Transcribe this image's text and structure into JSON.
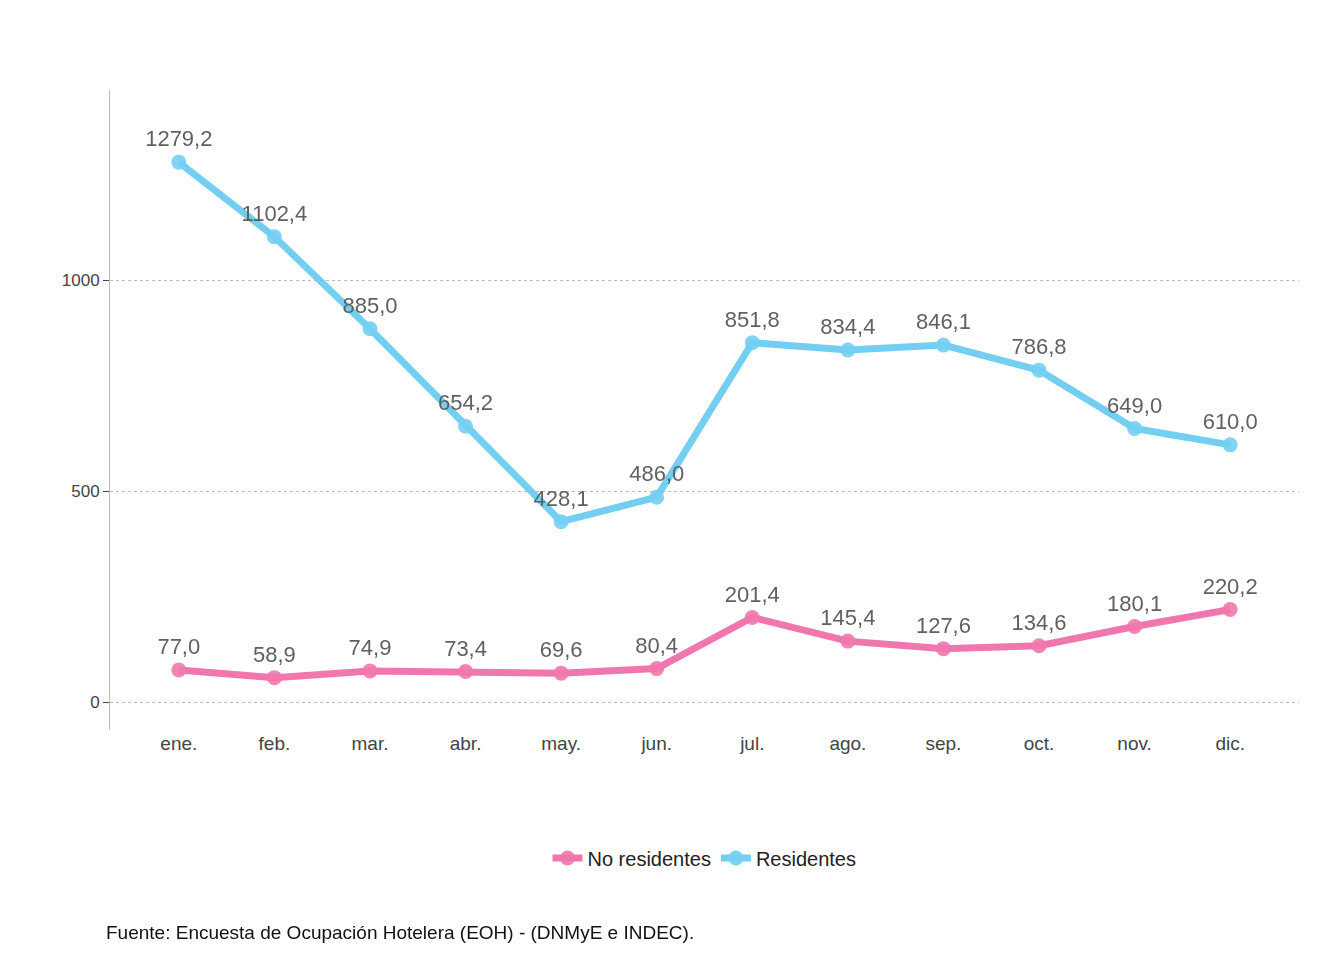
{
  "chart_data": {
    "type": "line",
    "categories": [
      "ene.",
      "feb.",
      "mar.",
      "abr.",
      "may.",
      "jun.",
      "jul.",
      "ago.",
      "sep.",
      "oct.",
      "nov.",
      "dic."
    ],
    "series": [
      {
        "name": "No residentes",
        "color": "#ee5f9f",
        "values": [
          77.0,
          58.9,
          74.9,
          73.4,
          69.6,
          80.4,
          201.4,
          145.4,
          127.6,
          134.6,
          180.1,
          220.2
        ],
        "value_labels": [
          "77,0",
          "58,9",
          "74,9",
          "73,4",
          "69,6",
          "80,4",
          "201,4",
          "145,4",
          "127,6",
          "134,6",
          "180,1",
          "220,2"
        ]
      },
      {
        "name": "Residentes",
        "color": "#5cc6ef",
        "values": [
          1279.2,
          1102.4,
          885.0,
          654.2,
          428.1,
          486.0,
          851.8,
          834.4,
          846.1,
          786.8,
          649.0,
          610.0
        ],
        "value_labels": [
          "1279,2",
          "1102,4",
          "885,0",
          "654,2",
          "428,1",
          "486,0",
          "851,8",
          "834,4",
          "846,1",
          "786,8",
          "649,0",
          "610,0"
        ]
      }
    ],
    "ylim": [
      -65,
      1450
    ],
    "yticks": [
      0,
      500,
      1000
    ],
    "grid": true,
    "legend": "bottom",
    "data_labels": true,
    "marker": "circle",
    "caption": "Fuente: Encuesta de Ocupación Hotelera (EOH) - (DNMyE e INDEC)."
  }
}
